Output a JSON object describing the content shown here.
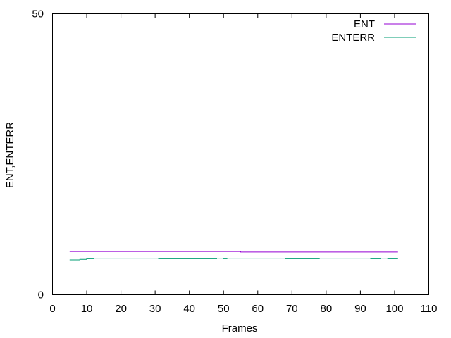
{
  "chart_data": {
    "type": "line",
    "xlabel": "Frames",
    "ylabel": "ENT,ENTERR",
    "xlim": [
      0,
      110
    ],
    "ylim": [
      0,
      50
    ],
    "xticks": [
      0,
      10,
      20,
      30,
      40,
      50,
      60,
      70,
      80,
      90,
      100,
      110
    ],
    "yticks": [
      0,
      50
    ],
    "grid": false,
    "legend_position": "top-right",
    "series": [
      {
        "name": "ENT",
        "color": "#9400d3",
        "x": [
          5,
          54,
          55,
          101
        ],
        "y": [
          7.7,
          7.7,
          7.6,
          7.6
        ]
      },
      {
        "name": "ENTERR",
        "color": "#009e73",
        "x": [
          5,
          8,
          10,
          12,
          20,
          30,
          31,
          40,
          47,
          48,
          50,
          51,
          60,
          67,
          68,
          77,
          78,
          92,
          93,
          95,
          96,
          98,
          101
        ],
        "y": [
          6.2,
          6.3,
          6.4,
          6.5,
          6.5,
          6.5,
          6.4,
          6.4,
          6.4,
          6.5,
          6.4,
          6.5,
          6.5,
          6.5,
          6.4,
          6.4,
          6.5,
          6.5,
          6.4,
          6.4,
          6.5,
          6.4,
          6.4
        ]
      }
    ]
  }
}
